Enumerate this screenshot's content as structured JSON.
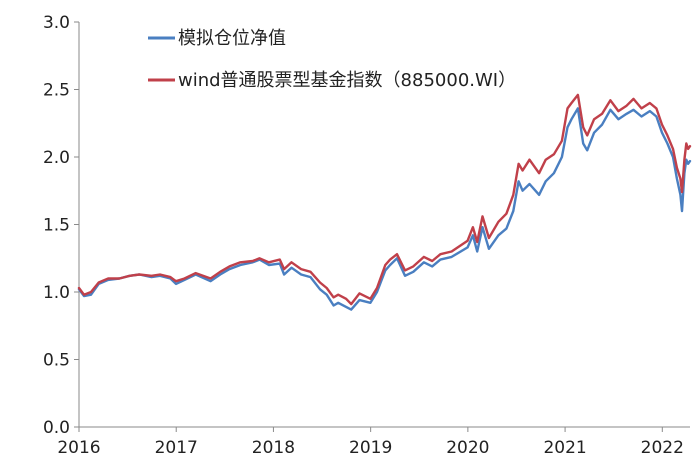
{
  "chart_data": {
    "type": "line",
    "title": "",
    "xlabel": "",
    "ylabel": "",
    "ylim": [
      0,
      3.0
    ],
    "xlim": [
      "2016-01-01",
      "2022-04-15"
    ],
    "y_ticks": [
      "0.0",
      "0.5",
      "1.0",
      "1.5",
      "2.0",
      "2.5",
      "3.0"
    ],
    "x_ticks": [
      "2016",
      "2017",
      "2018",
      "2019",
      "2020",
      "2021",
      "2022"
    ],
    "grid": false,
    "legend_position": "top-left",
    "series": [
      {
        "name": "模拟仓位净值",
        "color": "#4a7fc1",
        "points": [
          [
            "2016-01-01",
            1.02
          ],
          [
            "2016-01-20",
            0.97
          ],
          [
            "2016-02-15",
            0.98
          ],
          [
            "2016-03-15",
            1.06
          ],
          [
            "2016-04-20",
            1.09
          ],
          [
            "2016-06-01",
            1.1
          ],
          [
            "2016-07-10",
            1.12
          ],
          [
            "2016-08-15",
            1.13
          ],
          [
            "2016-09-30",
            1.11
          ],
          [
            "2016-11-01",
            1.12
          ],
          [
            "2016-12-10",
            1.1
          ],
          [
            "2016-12-31",
            1.06
          ],
          [
            "2017-02-01",
            1.09
          ],
          [
            "2017-03-15",
            1.13
          ],
          [
            "2017-05-10",
            1.08
          ],
          [
            "2017-06-15",
            1.13
          ],
          [
            "2017-07-20",
            1.17
          ],
          [
            "2017-08-30",
            1.2
          ],
          [
            "2017-10-15",
            1.22
          ],
          [
            "2017-11-10",
            1.24
          ],
          [
            "2017-12-15",
            1.2
          ],
          [
            "2018-01-25",
            1.21
          ],
          [
            "2018-02-10",
            1.13
          ],
          [
            "2018-03-10",
            1.18
          ],
          [
            "2018-04-15",
            1.13
          ],
          [
            "2018-05-20",
            1.11
          ],
          [
            "2018-06-25",
            1.02
          ],
          [
            "2018-07-20",
            0.98
          ],
          [
            "2018-08-15",
            0.9
          ],
          [
            "2018-09-01",
            0.92
          ],
          [
            "2018-10-01",
            0.89
          ],
          [
            "2018-10-20",
            0.87
          ],
          [
            "2018-11-20",
            0.94
          ],
          [
            "2018-12-31",
            0.92
          ],
          [
            "2019-01-25",
            1.0
          ],
          [
            "2019-02-25",
            1.16
          ],
          [
            "2019-03-15",
            1.2
          ],
          [
            "2019-04-10",
            1.25
          ],
          [
            "2019-05-10",
            1.12
          ],
          [
            "2019-06-10",
            1.15
          ],
          [
            "2019-07-20",
            1.22
          ],
          [
            "2019-08-20",
            1.19
          ],
          [
            "2019-09-20",
            1.24
          ],
          [
            "2019-11-01",
            1.26
          ],
          [
            "2019-12-31",
            1.33
          ],
          [
            "2020-01-20",
            1.42
          ],
          [
            "2020-02-05",
            1.3
          ],
          [
            "2020-02-25",
            1.48
          ],
          [
            "2020-03-20",
            1.32
          ],
          [
            "2020-04-25",
            1.42
          ],
          [
            "2020-05-25",
            1.47
          ],
          [
            "2020-06-20",
            1.6
          ],
          [
            "2020-07-10",
            1.82
          ],
          [
            "2020-07-25",
            1.75
          ],
          [
            "2020-08-20",
            1.8
          ],
          [
            "2020-09-25",
            1.72
          ],
          [
            "2020-10-20",
            1.82
          ],
          [
            "2020-11-20",
            1.88
          ],
          [
            "2020-12-20",
            2.0
          ],
          [
            "2021-01-10",
            2.22
          ],
          [
            "2021-01-25",
            2.28
          ],
          [
            "2021-02-18",
            2.36
          ],
          [
            "2021-03-10",
            2.1
          ],
          [
            "2021-03-25",
            2.05
          ],
          [
            "2021-04-20",
            2.18
          ],
          [
            "2021-05-20",
            2.24
          ],
          [
            "2021-06-20",
            2.35
          ],
          [
            "2021-07-20",
            2.28
          ],
          [
            "2021-08-20",
            2.32
          ],
          [
            "2021-09-15",
            2.35
          ],
          [
            "2021-10-15",
            2.3
          ],
          [
            "2021-11-15",
            2.34
          ],
          [
            "2021-12-10",
            2.3
          ],
          [
            "2021-12-31",
            2.18
          ],
          [
            "2022-01-20",
            2.1
          ],
          [
            "2022-02-10",
            2.0
          ],
          [
            "2022-02-25",
            1.84
          ],
          [
            "2022-03-10",
            1.72
          ],
          [
            "2022-03-16",
            1.6
          ],
          [
            "2022-03-25",
            1.88
          ],
          [
            "2022-04-01",
            1.98
          ],
          [
            "2022-04-08",
            1.95
          ],
          [
            "2022-04-15",
            1.97
          ]
        ]
      },
      {
        "name": "wind普通股票型基金指数（885000.WI）",
        "color": "#c0404a",
        "points": [
          [
            "2016-01-01",
            1.03
          ],
          [
            "2016-01-20",
            0.98
          ],
          [
            "2016-02-15",
            1.0
          ],
          [
            "2016-03-15",
            1.07
          ],
          [
            "2016-04-20",
            1.1
          ],
          [
            "2016-06-01",
            1.1
          ],
          [
            "2016-07-10",
            1.12
          ],
          [
            "2016-08-15",
            1.13
          ],
          [
            "2016-09-30",
            1.12
          ],
          [
            "2016-11-01",
            1.13
          ],
          [
            "2016-12-10",
            1.11
          ],
          [
            "2016-12-31",
            1.08
          ],
          [
            "2017-02-01",
            1.1
          ],
          [
            "2017-03-15",
            1.14
          ],
          [
            "2017-05-10",
            1.1
          ],
          [
            "2017-06-15",
            1.15
          ],
          [
            "2017-07-20",
            1.19
          ],
          [
            "2017-08-30",
            1.22
          ],
          [
            "2017-10-15",
            1.23
          ],
          [
            "2017-11-10",
            1.25
          ],
          [
            "2017-12-15",
            1.22
          ],
          [
            "2018-01-25",
            1.24
          ],
          [
            "2018-02-10",
            1.17
          ],
          [
            "2018-03-10",
            1.22
          ],
          [
            "2018-04-15",
            1.17
          ],
          [
            "2018-05-20",
            1.15
          ],
          [
            "2018-06-25",
            1.07
          ],
          [
            "2018-07-20",
            1.03
          ],
          [
            "2018-08-15",
            0.96
          ],
          [
            "2018-09-01",
            0.98
          ],
          [
            "2018-10-01",
            0.95
          ],
          [
            "2018-10-20",
            0.91
          ],
          [
            "2018-11-20",
            0.99
          ],
          [
            "2018-12-31",
            0.95
          ],
          [
            "2019-01-25",
            1.03
          ],
          [
            "2019-02-25",
            1.2
          ],
          [
            "2019-03-15",
            1.24
          ],
          [
            "2019-04-10",
            1.28
          ],
          [
            "2019-05-10",
            1.16
          ],
          [
            "2019-06-10",
            1.19
          ],
          [
            "2019-07-20",
            1.26
          ],
          [
            "2019-08-20",
            1.23
          ],
          [
            "2019-09-20",
            1.28
          ],
          [
            "2019-11-01",
            1.3
          ],
          [
            "2019-12-31",
            1.38
          ],
          [
            "2020-01-20",
            1.48
          ],
          [
            "2020-02-05",
            1.37
          ],
          [
            "2020-02-25",
            1.56
          ],
          [
            "2020-03-20",
            1.4
          ],
          [
            "2020-04-25",
            1.52
          ],
          [
            "2020-05-25",
            1.58
          ],
          [
            "2020-06-20",
            1.72
          ],
          [
            "2020-07-10",
            1.95
          ],
          [
            "2020-07-25",
            1.9
          ],
          [
            "2020-08-20",
            1.98
          ],
          [
            "2020-09-25",
            1.88
          ],
          [
            "2020-10-20",
            1.98
          ],
          [
            "2020-11-20",
            2.02
          ],
          [
            "2020-12-20",
            2.12
          ],
          [
            "2021-01-10",
            2.36
          ],
          [
            "2021-01-25",
            2.4
          ],
          [
            "2021-02-18",
            2.46
          ],
          [
            "2021-03-10",
            2.22
          ],
          [
            "2021-03-25",
            2.16
          ],
          [
            "2021-04-20",
            2.28
          ],
          [
            "2021-05-20",
            2.32
          ],
          [
            "2021-06-20",
            2.42
          ],
          [
            "2021-07-20",
            2.34
          ],
          [
            "2021-08-20",
            2.38
          ],
          [
            "2021-09-15",
            2.43
          ],
          [
            "2021-10-15",
            2.36
          ],
          [
            "2021-11-15",
            2.4
          ],
          [
            "2021-12-10",
            2.36
          ],
          [
            "2021-12-31",
            2.24
          ],
          [
            "2022-01-20",
            2.16
          ],
          [
            "2022-02-10",
            2.06
          ],
          [
            "2022-02-25",
            1.92
          ],
          [
            "2022-03-10",
            1.84
          ],
          [
            "2022-03-16",
            1.74
          ],
          [
            "2022-03-25",
            1.98
          ],
          [
            "2022-04-01",
            2.1
          ],
          [
            "2022-04-08",
            2.06
          ],
          [
            "2022-04-15",
            2.08
          ]
        ]
      }
    ]
  }
}
